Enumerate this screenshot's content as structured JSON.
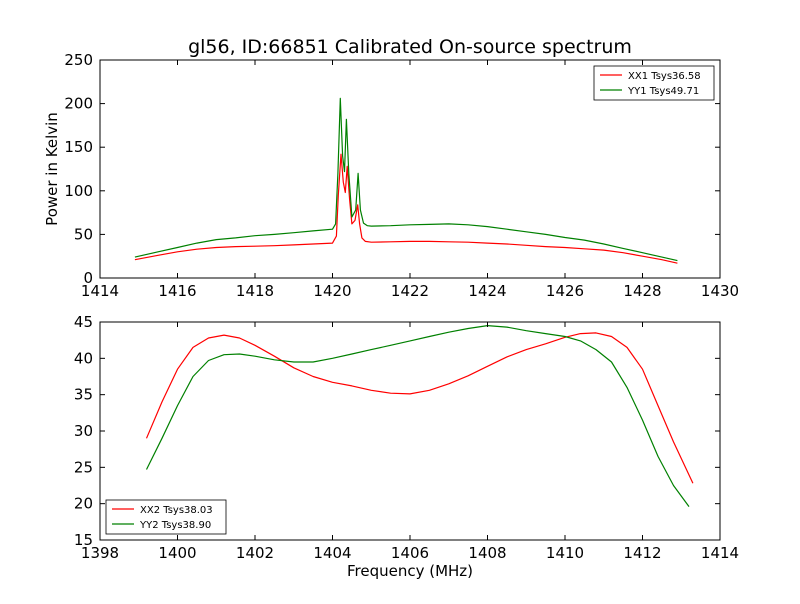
{
  "figure": {
    "title": "gl56, ID:66851 Calibrated On-source spectrum"
  },
  "chart_data": [
    {
      "type": "line",
      "title": "gl56, ID:66851 Calibrated On-source spectrum",
      "xlabel": "",
      "ylabel": "Power in Kelvin",
      "xlim": [
        1414,
        1430
      ],
      "ylim": [
        0,
        250
      ],
      "xticks": [
        1414,
        1416,
        1418,
        1420,
        1422,
        1424,
        1426,
        1428,
        1430
      ],
      "yticks": [
        0,
        50,
        100,
        150,
        200,
        250
      ],
      "grid": false,
      "legend": "top-right",
      "series": [
        {
          "name": "XX1 Tsys36.58",
          "color": "#ff0000",
          "x": [
            1414.9,
            1415.5,
            1416.0,
            1416.5,
            1417.0,
            1417.5,
            1418.0,
            1418.5,
            1419.0,
            1419.5,
            1420.0,
            1420.1,
            1420.15,
            1420.22,
            1420.28,
            1420.33,
            1420.38,
            1420.44,
            1420.5,
            1420.58,
            1420.65,
            1420.7,
            1420.76,
            1420.85,
            1421.0,
            1421.5,
            1422.0,
            1422.5,
            1423.0,
            1423.5,
            1424.0,
            1424.5,
            1425.0,
            1425.5,
            1426.0,
            1426.5,
            1427.0,
            1427.5,
            1428.0,
            1428.5,
            1428.9
          ],
          "y": [
            21,
            26,
            30,
            33,
            35,
            36,
            36.5,
            37,
            38,
            39,
            40,
            48,
            95,
            142,
            110,
            98,
            128,
            90,
            62,
            66,
            84,
            62,
            46,
            42,
            41,
            41.5,
            42,
            42,
            41.5,
            41,
            40,
            39,
            37.5,
            36,
            35,
            33.5,
            32,
            29,
            25,
            21,
            17
          ]
        },
        {
          "name": "YY1 Tsys49.71",
          "color": "#008000",
          "x": [
            1414.9,
            1415.5,
            1416.0,
            1416.5,
            1417.0,
            1417.5,
            1418.0,
            1418.5,
            1419.0,
            1419.5,
            1420.0,
            1420.08,
            1420.14,
            1420.2,
            1420.26,
            1420.31,
            1420.36,
            1420.42,
            1420.5,
            1420.6,
            1420.66,
            1420.72,
            1420.8,
            1420.9,
            1421.0,
            1421.5,
            1422.0,
            1422.5,
            1423.0,
            1423.5,
            1424.0,
            1424.5,
            1425.0,
            1425.5,
            1426.0,
            1426.5,
            1427.0,
            1427.5,
            1428.0,
            1428.5,
            1428.9
          ],
          "y": [
            24,
            30,
            35,
            40,
            44,
            46,
            48.5,
            50,
            52,
            54,
            56,
            62,
            120,
            206,
            140,
            122,
            182,
            120,
            70,
            78,
            120,
            78,
            63,
            60,
            59.5,
            60,
            61,
            61.5,
            62,
            61,
            59,
            56,
            53,
            50,
            46.5,
            43.5,
            39,
            34,
            29,
            24,
            20
          ]
        }
      ]
    },
    {
      "type": "line",
      "title": "",
      "xlabel": "Frequency (MHz)",
      "ylabel": "",
      "xlim": [
        1398,
        1414
      ],
      "ylim": [
        15,
        45
      ],
      "xticks": [
        1398,
        1400,
        1402,
        1404,
        1406,
        1408,
        1410,
        1412,
        1414
      ],
      "yticks": [
        15,
        20,
        25,
        30,
        35,
        40,
        45
      ],
      "grid": false,
      "legend": "bottom-left",
      "series": [
        {
          "name": "XX2 Tsys38.03",
          "color": "#ff0000",
          "x": [
            1399.2,
            1399.6,
            1400.0,
            1400.4,
            1400.8,
            1401.2,
            1401.6,
            1402.0,
            1402.5,
            1403.0,
            1403.5,
            1404.0,
            1404.5,
            1405.0,
            1405.5,
            1406.0,
            1406.5,
            1407.0,
            1407.5,
            1408.0,
            1408.5,
            1409.0,
            1409.5,
            1410.0,
            1410.4,
            1410.8,
            1411.2,
            1411.6,
            1412.0,
            1412.4,
            1412.8,
            1413.3
          ],
          "y": [
            29,
            34,
            38.5,
            41.5,
            42.8,
            43.2,
            42.8,
            41.8,
            40.3,
            38.7,
            37.5,
            36.7,
            36.2,
            35.6,
            35.2,
            35.1,
            35.6,
            36.5,
            37.6,
            38.9,
            40.2,
            41.2,
            42.0,
            42.9,
            43.4,
            43.5,
            43.0,
            41.5,
            38.5,
            33.5,
            28.5,
            22.8
          ]
        },
        {
          "name": "YY2 Tsys38.90",
          "color": "#008000",
          "x": [
            1399.2,
            1399.6,
            1400.0,
            1400.4,
            1400.8,
            1401.2,
            1401.6,
            1402.0,
            1402.5,
            1403.0,
            1403.5,
            1404.0,
            1404.5,
            1405.0,
            1405.5,
            1406.0,
            1406.5,
            1407.0,
            1407.5,
            1408.0,
            1408.5,
            1409.0,
            1409.5,
            1410.0,
            1410.4,
            1410.8,
            1411.2,
            1411.6,
            1412.0,
            1412.4,
            1412.8,
            1413.2
          ],
          "y": [
            24.7,
            29,
            33.5,
            37.5,
            39.7,
            40.5,
            40.6,
            40.3,
            39.8,
            39.5,
            39.5,
            40.0,
            40.6,
            41.2,
            41.8,
            42.4,
            43.0,
            43.6,
            44.1,
            44.5,
            44.3,
            43.8,
            43.4,
            43.0,
            42.4,
            41.2,
            39.5,
            36.0,
            31.5,
            26.5,
            22.5,
            19.6
          ]
        }
      ]
    }
  ]
}
